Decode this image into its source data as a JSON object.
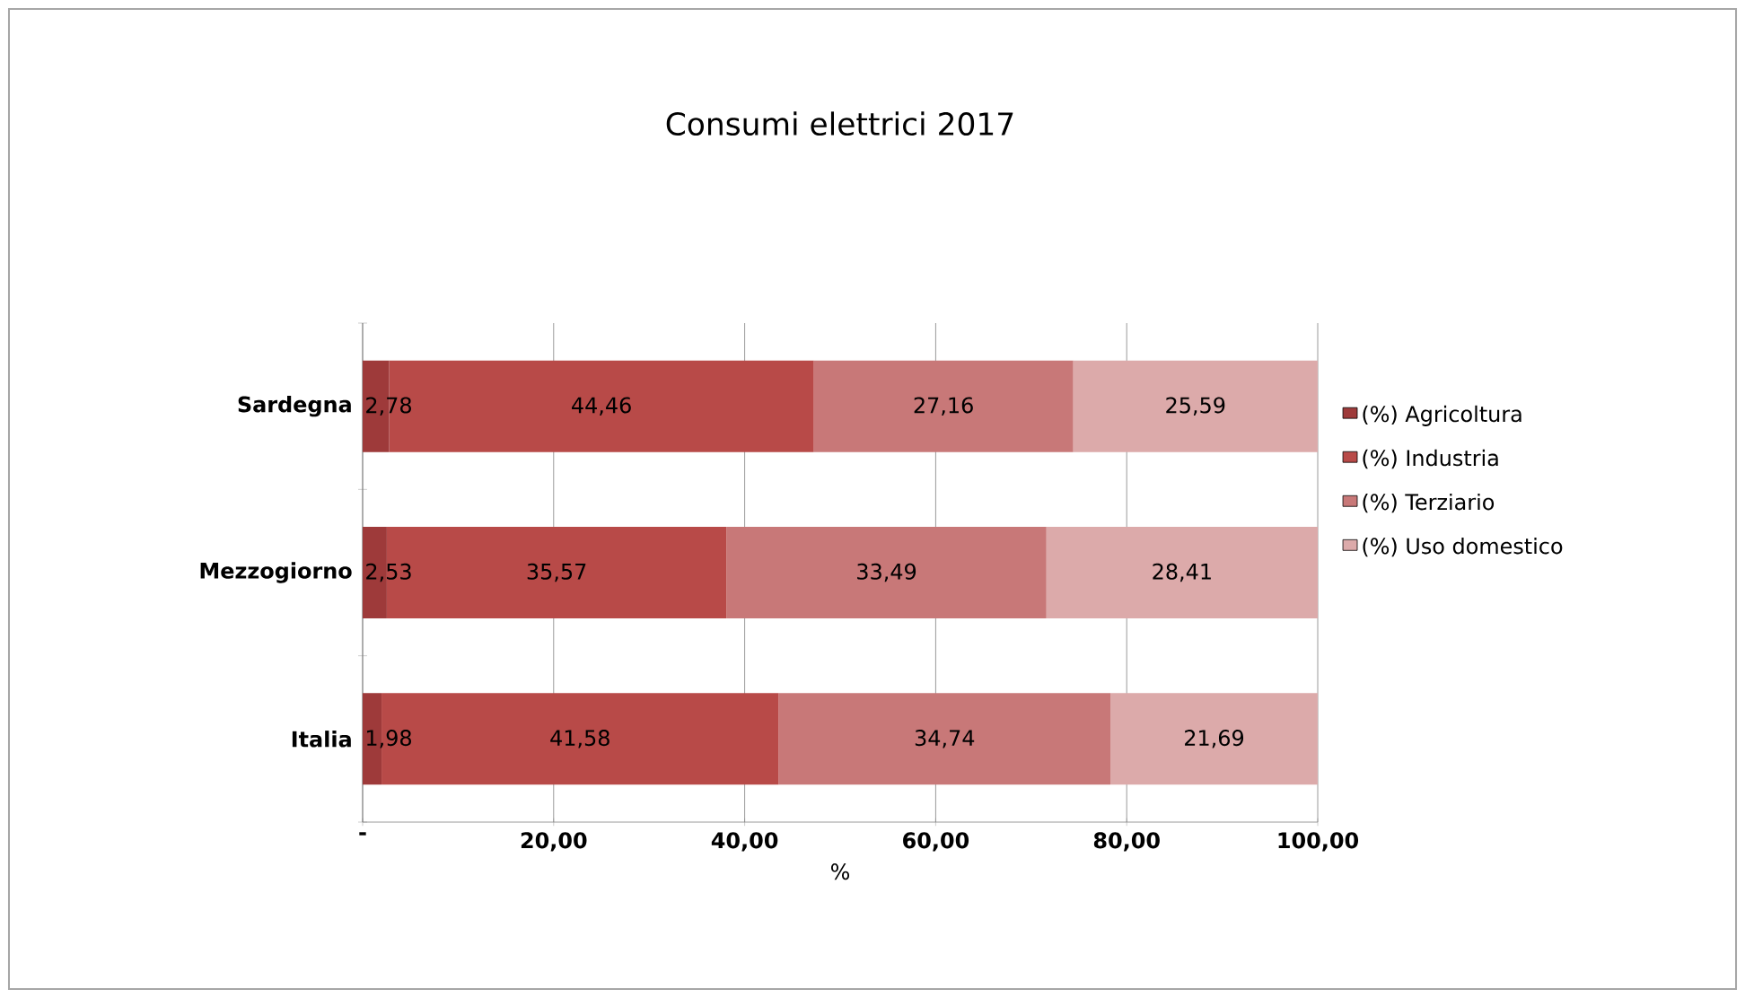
{
  "chart_data": {
    "type": "bar",
    "orientation": "horizontal",
    "stacked": true,
    "title": "Consumi elettrici 2017",
    "xlabel": "%",
    "categories": [
      "Sardegna",
      "Mezzogiorno",
      "Italia"
    ],
    "series": [
      {
        "name": "(%) Agricoltura",
        "color": "#9e3a3a",
        "values": [
          2.78,
          2.53,
          1.98
        ],
        "value_labels": [
          "2,78",
          "2,53",
          "1,98"
        ]
      },
      {
        "name": "(%) Industria",
        "color": "#b84a48",
        "values": [
          44.46,
          35.57,
          41.58
        ],
        "value_labels": [
          "44,46",
          "35,57",
          "41,58"
        ]
      },
      {
        "name": "(%) Terziario",
        "color": "#c87878",
        "values": [
          27.16,
          33.49,
          34.74
        ],
        "value_labels": [
          "27,16",
          "33,49",
          "34,74"
        ]
      },
      {
        "name": "(%) Uso domestico",
        "color": "#dcaaaa",
        "values": [
          25.59,
          28.41,
          21.69
        ],
        "value_labels": [
          "25,59",
          "28,41",
          "21,69"
        ]
      }
    ],
    "xlim": [
      0,
      100
    ],
    "xticks": [
      {
        "value": 0,
        "label": "-"
      },
      {
        "value": 20,
        "label": "20,00"
      },
      {
        "value": 40,
        "label": "40,00"
      },
      {
        "value": 60,
        "label": "60,00"
      },
      {
        "value": 80,
        "label": "80,00"
      },
      {
        "value": 100,
        "label": "100,00"
      }
    ],
    "grid": "x",
    "legend": "right"
  }
}
